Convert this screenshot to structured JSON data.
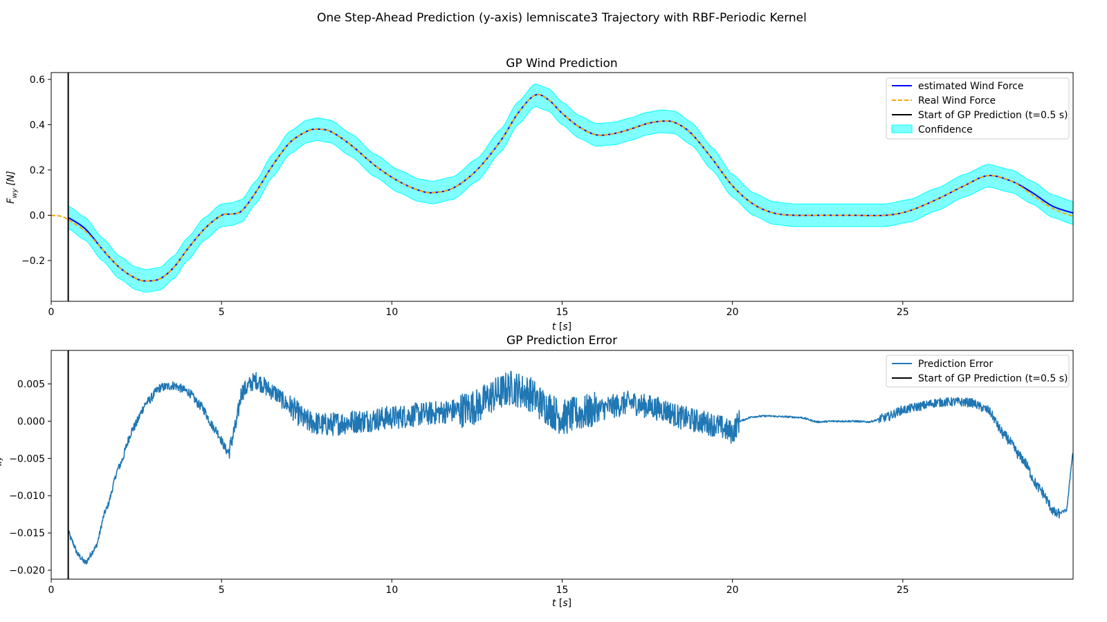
{
  "figure": {
    "suptitle": "One Step-Ahead Prediction (y-axis) lemniscate3 Trajectory with RBF-Periodic Kernel"
  },
  "colors": {
    "estimated": "#0000ff",
    "real": "#ffa500",
    "start_line": "#000000",
    "confidence": "#00ffff",
    "error": "#1f77b4"
  },
  "chart_data": [
    {
      "type": "line",
      "title": "GP Wind Prediction",
      "xlabel": "t [s]",
      "ylabel": "F_wy [N]",
      "ylabel_main": "F",
      "ylabel_sub": "wy",
      "ylabel_unit": "[N]",
      "xlim": [
        0,
        30
      ],
      "ylim": [
        -0.38,
        0.63
      ],
      "xticks": [
        0,
        5,
        10,
        15,
        20,
        25
      ],
      "xtick_labels": [
        "0",
        "5",
        "10",
        "15",
        "20",
        "25"
      ],
      "yticks": [
        -0.2,
        0.0,
        0.2,
        0.4,
        0.6
      ],
      "ytick_labels": [
        "−0.2",
        "0.0",
        "0.2",
        "0.4",
        "0.6"
      ],
      "grid": false,
      "legend_position": "upper-right",
      "start_line_x": 0.5,
      "series": [
        {
          "name": "estimated Wind Force",
          "style": "solid",
          "x": [
            0.5,
            1.0,
            1.5,
            2.0,
            2.5,
            2.8,
            3.2,
            3.6,
            4.0,
            4.5,
            5.0,
            5.3,
            5.6,
            6.0,
            6.5,
            7.0,
            7.5,
            7.8,
            8.2,
            8.8,
            9.5,
            10.2,
            10.8,
            11.2,
            11.8,
            12.5,
            13.2,
            13.7,
            14.2,
            14.6,
            15.0,
            15.5,
            16.0,
            16.5,
            17.0,
            17.5,
            17.9,
            18.3,
            18.8,
            19.4,
            20.0,
            20.6,
            21.2,
            21.8,
            22.5,
            23.5,
            24.5,
            25.2,
            26.0,
            26.8,
            27.5,
            28.2,
            28.8,
            29.4,
            30.0
          ],
          "values": [
            -0.01,
            -0.06,
            -0.15,
            -0.23,
            -0.28,
            -0.29,
            -0.28,
            -0.23,
            -0.15,
            -0.06,
            0.0,
            0.005,
            0.02,
            0.1,
            0.22,
            0.32,
            0.37,
            0.38,
            0.37,
            0.31,
            0.22,
            0.15,
            0.11,
            0.1,
            0.12,
            0.2,
            0.33,
            0.45,
            0.53,
            0.51,
            0.45,
            0.39,
            0.355,
            0.36,
            0.38,
            0.405,
            0.415,
            0.41,
            0.36,
            0.25,
            0.13,
            0.05,
            0.01,
            0.0,
            0.0,
            0.0,
            0.0,
            0.02,
            0.07,
            0.13,
            0.175,
            0.15,
            0.1,
            0.04,
            0.01
          ]
        },
        {
          "name": "Real Wind Force",
          "style": "dashed",
          "x": [
            0.0,
            0.3,
            0.5,
            1.0,
            1.5,
            2.0,
            2.5,
            2.8,
            3.2,
            3.6,
            4.0,
            4.5,
            5.0,
            5.3,
            5.6,
            6.0,
            6.5,
            7.0,
            7.5,
            7.8,
            8.2,
            8.8,
            9.5,
            10.2,
            10.8,
            11.2,
            11.8,
            12.5,
            13.2,
            13.7,
            14.2,
            14.6,
            15.0,
            15.5,
            16.0,
            16.5,
            17.0,
            17.5,
            17.9,
            18.3,
            18.8,
            19.4,
            20.0,
            20.6,
            21.2,
            21.8,
            22.5,
            23.5,
            24.5,
            25.2,
            26.0,
            26.8,
            27.5,
            28.2,
            28.8,
            29.4,
            30.0
          ],
          "values": [
            0.0,
            -0.005,
            -0.02,
            -0.07,
            -0.15,
            -0.23,
            -0.28,
            -0.29,
            -0.28,
            -0.23,
            -0.15,
            -0.06,
            0.0,
            0.005,
            0.02,
            0.1,
            0.22,
            0.32,
            0.37,
            0.38,
            0.37,
            0.31,
            0.22,
            0.15,
            0.11,
            0.1,
            0.12,
            0.2,
            0.33,
            0.45,
            0.53,
            0.51,
            0.45,
            0.39,
            0.355,
            0.36,
            0.38,
            0.405,
            0.415,
            0.41,
            0.36,
            0.25,
            0.13,
            0.05,
            0.01,
            0.0,
            0.0,
            0.0,
            0.0,
            0.02,
            0.07,
            0.13,
            0.175,
            0.15,
            0.09,
            0.03,
            -0.005
          ]
        },
        {
          "name": "Start of GP Prediction (t=0.5 s)",
          "style": "vline"
        },
        {
          "name": "Confidence",
          "style": "band",
          "half_width": 0.05
        }
      ]
    },
    {
      "type": "line",
      "title": "GP Prediction Error",
      "xlabel": "t [s]",
      "ylabel_main": "e",
      "ylabel_sub": "wy",
      "xlim": [
        0,
        30
      ],
      "ylim": [
        -0.0212,
        0.0095
      ],
      "xticks": [
        0,
        5,
        10,
        15,
        20,
        25
      ],
      "xtick_labels": [
        "0",
        "5",
        "10",
        "15",
        "20",
        "25"
      ],
      "yticks": [
        -0.02,
        -0.015,
        -0.01,
        -0.005,
        0.0,
        0.005
      ],
      "ytick_labels": [
        "−0.020",
        "−0.015",
        "−0.010",
        "−0.005",
        "0.000",
        "0.005"
      ],
      "grid": false,
      "legend_position": "upper-right",
      "start_line_x": 0.5,
      "series": [
        {
          "name": "Prediction Error",
          "style": "solid",
          "x": [
            0.5,
            0.6,
            0.8,
            1.0,
            1.3,
            1.6,
            2.0,
            2.4,
            2.8,
            3.2,
            3.6,
            4.0,
            4.4,
            4.8,
            5.2,
            5.4,
            5.6,
            6.0,
            6.5,
            7.0,
            7.5,
            8.0,
            9.0,
            10.0,
            11.0,
            12.0,
            12.5,
            13.0,
            13.5,
            14.0,
            14.5,
            15.0,
            15.5,
            16.0,
            16.5,
            17.0,
            17.5,
            18.0,
            18.5,
            19.0,
            19.5,
            20.0,
            20.2,
            20.6,
            21.0,
            21.5,
            22.0,
            22.5,
            23.0,
            23.5,
            24.0,
            24.5,
            25.0,
            25.5,
            26.0,
            26.5,
            27.0,
            27.5,
            28.0,
            28.5,
            29.0,
            29.5,
            29.8,
            30.0
          ],
          "values": [
            -0.0148,
            -0.016,
            -0.018,
            -0.019,
            -0.017,
            -0.012,
            -0.006,
            -0.001,
            0.0025,
            0.0045,
            0.0048,
            0.004,
            0.002,
            -0.001,
            -0.0042,
            -0.001,
            0.004,
            0.0055,
            0.004,
            0.002,
            0.0,
            -0.0005,
            0.0,
            0.0005,
            0.001,
            0.0015,
            0.002,
            0.0035,
            0.0045,
            0.0038,
            0.002,
            0.0005,
            0.001,
            0.0015,
            0.002,
            0.0025,
            0.002,
            0.0015,
            0.0005,
            0.0,
            -0.0005,
            -0.0015,
            0.0,
            0.0006,
            0.0007,
            0.0006,
            0.0005,
            -0.0001,
            0.0,
            0.0,
            -0.0001,
            0.0005,
            0.0015,
            0.002,
            0.0025,
            0.0026,
            0.0025,
            0.0015,
            -0.002,
            -0.005,
            -0.009,
            -0.0125,
            -0.012,
            -0.0042
          ]
        },
        {
          "name": "Start of GP Prediction (t=0.5 s)",
          "style": "vline"
        }
      ]
    }
  ]
}
